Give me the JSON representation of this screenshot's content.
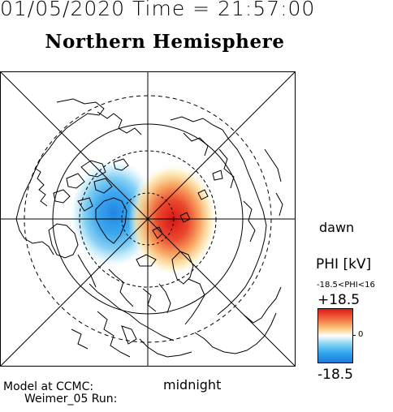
{
  "header": {
    "timestamp": "01/05/2020 Time = 21:57:00",
    "title": "Northern Hemisphere"
  },
  "map": {
    "orientation_right": "dawn",
    "orientation_bottom": "midnight",
    "positive_cell_color": "#e2191b",
    "negative_cell_color": "#1d79d8",
    "grid_color": "#000000"
  },
  "colorbar": {
    "title": "PHI [kV]",
    "range_label": "-18.5<PHI<16",
    "max_label": "+18.5",
    "zero_label": "0",
    "min_label": "-18.5",
    "colors": [
      "#e2191b",
      "#fbc67c",
      "#ffffff",
      "#8fd8f5",
      "#1d79d8"
    ]
  },
  "footer": {
    "model_line1": "Model at CCMC:",
    "model_line2": "Weimer_05 Run:"
  }
}
